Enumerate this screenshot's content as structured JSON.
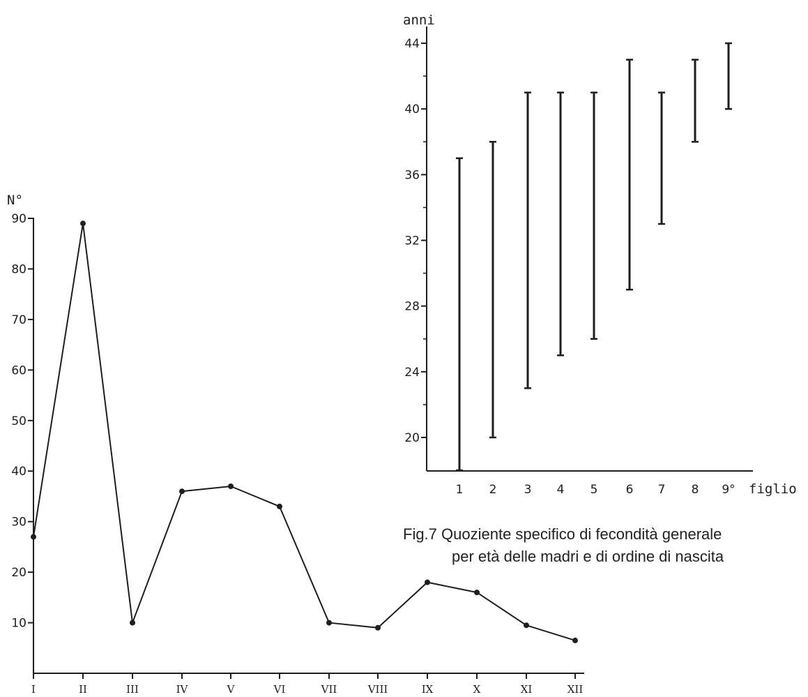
{
  "chart_data": [
    {
      "type": "line",
      "ylabel": "N°",
      "xlabel": "",
      "categories": [
        "I",
        "II",
        "III",
        "IV",
        "V",
        "VI",
        "VII",
        "VIII",
        "IX",
        "X",
        "XI",
        "XII"
      ],
      "values": [
        27,
        89,
        10,
        36,
        37,
        33,
        10,
        9,
        18,
        16,
        9.5,
        6.5
      ],
      "yticks": [
        "10",
        "20",
        "30",
        "40",
        "50",
        "60",
        "70",
        "80",
        "90"
      ],
      "ylim": [
        0,
        90
      ],
      "grid": false,
      "color": "#1e1e1e"
    },
    {
      "type": "range",
      "ylabel": "anni",
      "xlabel": "figlio",
      "categories": [
        "1",
        "2",
        "3",
        "4",
        "5",
        "6",
        "7",
        "8",
        "9°"
      ],
      "ranges": [
        {
          "low": 18,
          "high": 37
        },
        {
          "low": 20,
          "high": 38
        },
        {
          "low": 23,
          "high": 41
        },
        {
          "low": 25,
          "high": 41
        },
        {
          "low": 26,
          "high": 41
        },
        {
          "low": 29,
          "high": 43
        },
        {
          "low": 33,
          "high": 41
        },
        {
          "low": 38,
          "high": 43
        },
        {
          "low": 40,
          "high": 44
        }
      ],
      "yticks": [
        "20",
        "24",
        "28",
        "32",
        "36",
        "40",
        "44"
      ],
      "ylim": [
        18,
        44
      ],
      "grid": false,
      "color": "#1e1e1e"
    }
  ],
  "caption": {
    "line1": "Fig.7 Quoziente specifico di fecondità generale",
    "line2": "per età delle madri e di ordine di nascita"
  }
}
